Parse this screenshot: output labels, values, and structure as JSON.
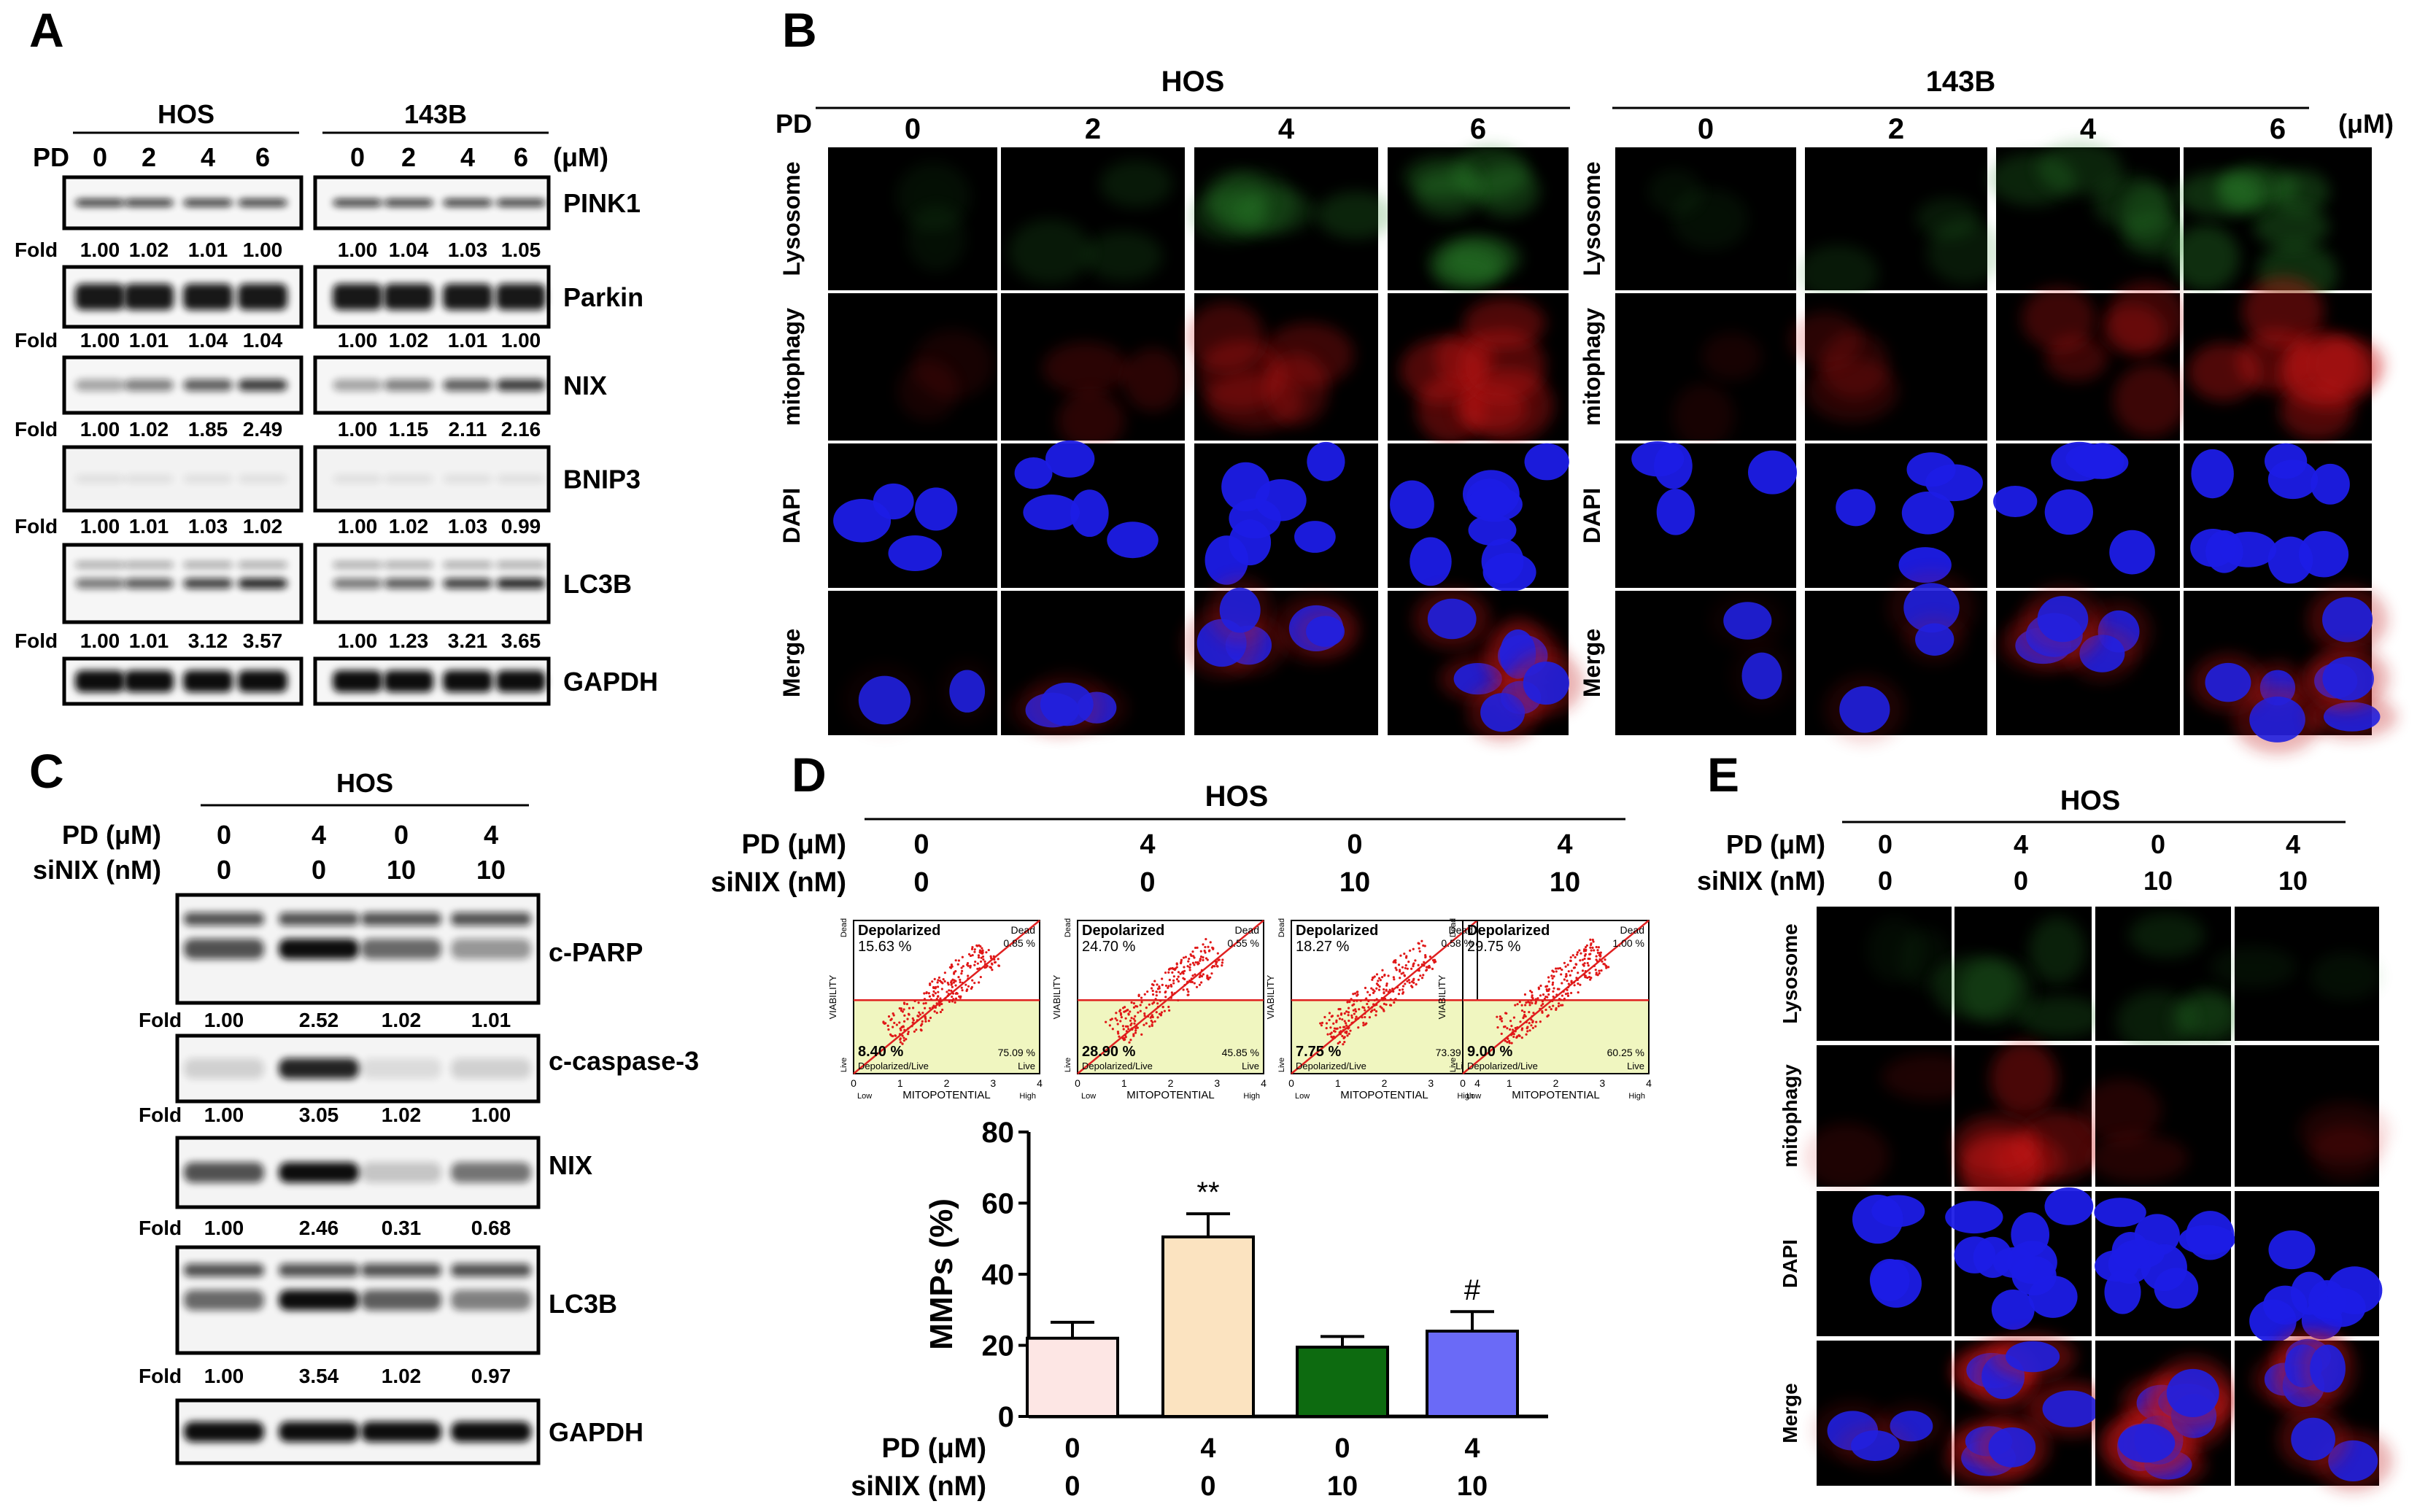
{
  "panels": {
    "A": {
      "letter": "A",
      "pd_label": "PD",
      "unit": "(μM)",
      "fold_label": "Fold",
      "groups": [
        {
          "name": "HOS",
          "doses": [
            "0",
            "2",
            "4",
            "6"
          ]
        },
        {
          "name": "143B",
          "doses": [
            "0",
            "2",
            "4",
            "6"
          ]
        }
      ],
      "blots": [
        {
          "name": "PINK1",
          "folds": [
            [
              "1.00",
              "1.02",
              "1.01",
              "1.00"
            ],
            [
              "1.00",
              "1.04",
              "1.03",
              "1.05"
            ]
          ]
        },
        {
          "name": "Parkin",
          "folds": [
            [
              "1.00",
              "1.01",
              "1.04",
              "1.04"
            ],
            [
              "1.00",
              "1.02",
              "1.01",
              "1.00"
            ]
          ]
        },
        {
          "name": "NIX",
          "folds": [
            [
              "1.00",
              "1.02",
              "1.85",
              "2.49"
            ],
            [
              "1.00",
              "1.15",
              "2.11",
              "2.16"
            ]
          ]
        },
        {
          "name": "BNIP3",
          "folds": [
            [
              "1.00",
              "1.01",
              "1.03",
              "1.02"
            ],
            [
              "1.00",
              "1.02",
              "1.03",
              "0.99"
            ]
          ]
        },
        {
          "name": "LC3B",
          "folds": [
            [
              "1.00",
              "1.01",
              "3.12",
              "3.57"
            ],
            [
              "1.00",
              "1.23",
              "3.21",
              "3.65"
            ]
          ]
        },
        {
          "name": "GAPDH",
          "folds": []
        }
      ]
    },
    "B": {
      "letter": "B",
      "pd_label": "PD",
      "unit": "(μM)",
      "groups": [
        {
          "name": "HOS",
          "doses": [
            "0",
            "2",
            "4",
            "6"
          ]
        },
        {
          "name": "143B",
          "doses": [
            "0",
            "2",
            "4",
            "6"
          ]
        }
      ],
      "rows": [
        "Lysosome",
        "mitophagy",
        "DAPI",
        "Merge"
      ]
    },
    "C": {
      "letter": "C",
      "group": "HOS",
      "pd_label": "PD (μM)",
      "si_label": "siNIX (nM)",
      "pd_values": [
        "0",
        "4",
        "0",
        "4"
      ],
      "si_values": [
        "0",
        "0",
        "10",
        "10"
      ],
      "fold_label": "Fold",
      "blots": [
        {
          "name": "c-PARP",
          "folds": [
            "1.00",
            "2.52",
            "1.02",
            "1.01"
          ]
        },
        {
          "name": "c-caspase-3",
          "folds": [
            "1.00",
            "3.05",
            "1.02",
            "1.00"
          ]
        },
        {
          "name": "NIX",
          "folds": [
            "1.00",
            "2.46",
            "0.31",
            "0.68"
          ]
        },
        {
          "name": "LC3B",
          "folds": [
            "1.00",
            "3.54",
            "1.02",
            "0.97"
          ]
        },
        {
          "name": "GAPDH",
          "folds": []
        }
      ]
    },
    "D": {
      "letter": "D",
      "group": "HOS",
      "pd_label": "PD (μM)",
      "si_label": "siNIX (nM)",
      "pd_values": [
        "0",
        "4",
        "0",
        "4"
      ],
      "si_values": [
        "0",
        "0",
        "10",
        "10"
      ],
      "flow": {
        "x_axis": "MITOPOTENTIAL",
        "y_axis": "VIABILITY",
        "x_low": "Low",
        "x_high": "High",
        "y_low": "Live",
        "y_high": "Dead",
        "depolarized": "Depolarized",
        "dead": "Dead",
        "depol_live": "Depolarized/Live",
        "live": "Live",
        "ticks": [
          "0",
          "1",
          "2",
          "3",
          "4"
        ],
        "plots": [
          {
            "depolarized_pct": "15.63 %",
            "dead_pct": "0.85 %",
            "depol_live_pct": "8.40 %",
            "live_pct": "75.09 %"
          },
          {
            "depolarized_pct": "24.70 %",
            "dead_pct": "0.55 %",
            "depol_live_pct": "28.90 %",
            "live_pct": "45.85 %"
          },
          {
            "depolarized_pct": "18.27 %",
            "dead_pct": "0.58 %",
            "depol_live_pct": "7.75 %",
            "live_pct": "73.39 %"
          },
          {
            "depolarized_pct": "29.75 %",
            "dead_pct": "1.00 %",
            "depol_live_pct": "9.00 %",
            "live_pct": "60.25 %"
          }
        ]
      }
    },
    "E": {
      "letter": "E",
      "group": "HOS",
      "pd_label": "PD (μM)",
      "si_label": "siNIX (nM)",
      "pd_values": [
        "0",
        "4",
        "0",
        "4"
      ],
      "si_values": [
        "0",
        "0",
        "10",
        "10"
      ],
      "rows": [
        "Lysosome",
        "mitophagy",
        "DAPI",
        "Merge"
      ]
    }
  },
  "chart_data": {
    "type": "bar",
    "categories": [
      "PD 0 / siNIX 0",
      "PD 4 / siNIX 0",
      "PD 0 / siNIX 10",
      "PD 4 / siNIX 10"
    ],
    "values": [
      22,
      50.5,
      19.5,
      24
    ],
    "errors": [
      4.5,
      6.5,
      3,
      5.5
    ],
    "ylabel": "MMPs (%)",
    "ylim": [
      0,
      80
    ],
    "yticks": [
      "0",
      "20",
      "40",
      "60",
      "80"
    ],
    "annotations": [
      "",
      "**",
      "",
      "#"
    ],
    "bar_colors": [
      "#fde6e4",
      "#fbe3c0",
      "#0d6b10",
      "#6a6af7"
    ],
    "pd_values": [
      "0",
      "4",
      "0",
      "4"
    ],
    "si_values": [
      "0",
      "0",
      "10",
      "10"
    ],
    "pd_label": "PD (μM)",
    "si_label": "siNIX (nM)"
  }
}
